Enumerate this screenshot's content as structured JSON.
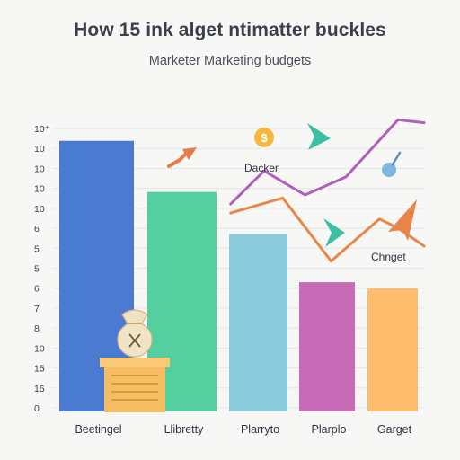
{
  "chart_data": {
    "type": "bar",
    "title": "How 15 ink alget ntimatter buckles",
    "subtitle": "Marketer Marketing budgets",
    "y_tick_labels": [
      "10⁺",
      "10",
      "10",
      "10",
      "10",
      "6",
      "5",
      "5",
      "6",
      "7",
      "8",
      "10",
      "15",
      "15",
      "0"
    ],
    "categories": [
      "Beetingel",
      "Llibretty",
      "Plarryto",
      "Plarplo",
      "Garget"
    ],
    "values": [
      90,
      73,
      59,
      43,
      41
    ],
    "ylim": [
      0,
      95
    ],
    "bar_colors": [
      "#4a7bd1",
      "#54cfa0",
      "#8ccbdb",
      "#c86bb6",
      "#fdbd6c"
    ],
    "lines": [
      {
        "color": "#b15fbd",
        "x": [
          0.48,
          0.57,
          0.68,
          0.79,
          0.93,
          1.0
        ],
        "values": [
          69,
          80,
          72,
          78,
          97,
          96
        ]
      },
      {
        "color": "#ea8549",
        "x": [
          0.48,
          0.62,
          0.75,
          0.88,
          0.93,
          1.0
        ],
        "values": [
          66,
          71,
          50,
          64,
          61,
          55
        ]
      }
    ],
    "annotations": [
      "Dacker",
      "Chnget"
    ],
    "grid": true
  },
  "icons": [
    "money-bag-icon",
    "dollar-coin-icon",
    "arrow-icon",
    "triangle-icon",
    "pin-icon"
  ],
  "colors": {
    "coin": "#f4b740",
    "teal": "#3dbfa3",
    "arrow": "#e97a49"
  }
}
